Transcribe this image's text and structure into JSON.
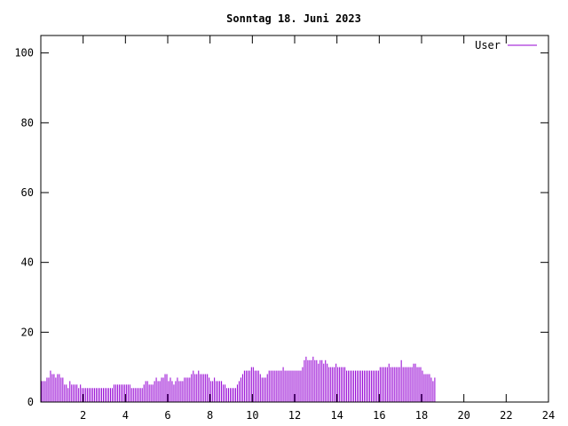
{
  "chart_data": {
    "type": "bar",
    "title": "Sonntag 18. Juni 2023",
    "xlabel": "",
    "ylabel": "",
    "xlim": [
      0,
      24
    ],
    "ylim": [
      0,
      105
    ],
    "x_ticks": [
      2,
      4,
      6,
      8,
      10,
      12,
      14,
      16,
      18,
      20,
      22,
      24
    ],
    "y_ticks": [
      0,
      20,
      40,
      60,
      80,
      100
    ],
    "grid": false,
    "legend_position": "top-right",
    "series": [
      {
        "name": "User",
        "color": "#9400d3",
        "interval_minutes": 5,
        "values": [
          6,
          6,
          6,
          7,
          7,
          9,
          8,
          8,
          7,
          8,
          8,
          7,
          7,
          5,
          5,
          4,
          6,
          5,
          5,
          5,
          5,
          4,
          5,
          4,
          4,
          4,
          4,
          4,
          4,
          4,
          4,
          4,
          4,
          4,
          4,
          4,
          4,
          4,
          4,
          4,
          4,
          5,
          5,
          5,
          5,
          5,
          5,
          5,
          5,
          5,
          5,
          4,
          4,
          4,
          4,
          4,
          4,
          4,
          5,
          6,
          6,
          5,
          5,
          5,
          6,
          7,
          6,
          6,
          7,
          7,
          8,
          8,
          6,
          7,
          6,
          5,
          6,
          7,
          6,
          6,
          6,
          7,
          7,
          7,
          7,
          8,
          9,
          8,
          8,
          9,
          8,
          8,
          8,
          8,
          8,
          7,
          6,
          6,
          7,
          6,
          6,
          6,
          6,
          5,
          5,
          4,
          4,
          4,
          4,
          4,
          4,
          5,
          6,
          7,
          8,
          9,
          9,
          9,
          9,
          10,
          10,
          9,
          9,
          9,
          8,
          7,
          7,
          7,
          8,
          9,
          9,
          9,
          9,
          9,
          9,
          9,
          9,
          10,
          9,
          9,
          9,
          9,
          9,
          9,
          9,
          9,
          9,
          9,
          10,
          12,
          13,
          12,
          12,
          12,
          13,
          12,
          12,
          11,
          12,
          12,
          11,
          12,
          11,
          10,
          10,
          10,
          10,
          11,
          10,
          10,
          10,
          10,
          10,
          9,
          9,
          9,
          9,
          9,
          9,
          9,
          9,
          9,
          9,
          9,
          9,
          9,
          9,
          9,
          9,
          9,
          9,
          9,
          10,
          10,
          10,
          10,
          10,
          11,
          10,
          10,
          10,
          10,
          10,
          10,
          12,
          10,
          10,
          10,
          10,
          10,
          10,
          11,
          11,
          10,
          10,
          10,
          9,
          8,
          8,
          8,
          8,
          7,
          6,
          7
        ]
      }
    ]
  }
}
